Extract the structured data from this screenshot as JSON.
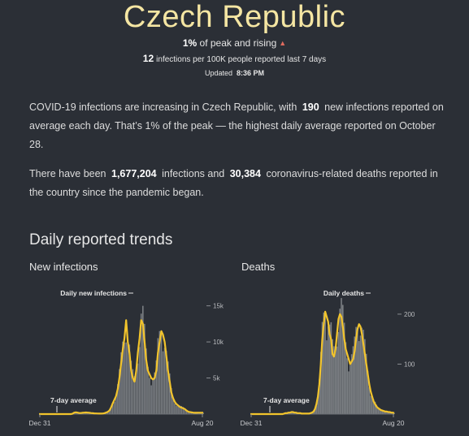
{
  "header": {
    "title": "Czech Republic",
    "peak_pct": "1%",
    "peak_text": "of peak and rising",
    "rising_icon": "up-triangle-icon",
    "per100k_value": "12",
    "per100k_text": "infections per 100K people reported last 7 days",
    "updated_label": "Updated",
    "updated_time": "8:36 PM"
  },
  "summary": {
    "p1_a": "COVID-19 infections are increasing in Czech Republic, with",
    "p1_value": "190",
    "p1_b": "new infections reported on average each day. That’s 1% of the peak — the highest daily average reported on October 28.",
    "p2_a": "There have been",
    "p2_infections": "1,677,204",
    "p2_b": "infections and",
    "p2_deaths": "30,384",
    "p2_c": "coronavirus-related deaths reported in the country since the pandemic began."
  },
  "trends": {
    "section_title": "Daily reported trends"
  },
  "colors": {
    "background": "#2b2f36",
    "title": "#f5e6a3",
    "average_line": "#f2c42c",
    "daily_bars": "#8a8d91",
    "rising_arrow": "#e06b5f"
  },
  "chart_data": [
    {
      "type": "area",
      "title": "New infections",
      "series_label": "Daily new infections",
      "average_label": "7-day average",
      "x_start_label": "Dec 31",
      "x_end_label": "Aug 20",
      "y_ticks": [
        "15k",
        "10k",
        "5k"
      ],
      "y_tick_values": [
        15000,
        10000,
        5000
      ],
      "ylim": [
        0,
        18000
      ],
      "seven_day_average": [
        0,
        0,
        0,
        0,
        0,
        0,
        0,
        0,
        0,
        0,
        0,
        0,
        0,
        0,
        0,
        0,
        0,
        0,
        0,
        0,
        50,
        200,
        250,
        200,
        150,
        150,
        180,
        200,
        220,
        200,
        180,
        150,
        120,
        100,
        90,
        80,
        70,
        70,
        80,
        120,
        200,
        300,
        500,
        900,
        1500,
        2000,
        2500,
        3500,
        5000,
        7000,
        9000,
        10500,
        13000,
        10000,
        8500,
        6000,
        5000,
        4500,
        6000,
        8500,
        10500,
        13000,
        12500,
        10000,
        7500,
        6000,
        5500,
        5000,
        4800,
        5000,
        6000,
        8500,
        10000,
        11500,
        11000,
        10000,
        8000,
        6000,
        4500,
        3000,
        2200,
        1700,
        1400,
        1200,
        1000,
        900,
        800,
        700,
        500,
        350,
        280,
        250,
        200,
        180,
        180,
        190,
        190,
        190,
        190
      ]
    },
    {
      "type": "area",
      "title": "Deaths",
      "series_label": "Daily deaths",
      "average_label": "7-day average",
      "x_start_label": "Dec 31",
      "x_end_label": "Aug 20",
      "y_ticks": [
        "200",
        "100"
      ],
      "y_tick_values": [
        200,
        100
      ],
      "ylim": [
        0,
        260
      ],
      "seven_day_average": [
        0,
        0,
        0,
        0,
        0,
        0,
        0,
        0,
        0,
        0,
        0,
        0,
        0,
        0,
        0,
        0,
        0,
        0,
        0,
        0,
        0,
        0,
        0,
        1,
        2,
        2,
        3,
        3,
        4,
        4,
        3,
        3,
        2,
        2,
        2,
        1,
        1,
        1,
        1,
        1,
        1,
        2,
        3,
        5,
        10,
        20,
        35,
        60,
        100,
        150,
        180,
        205,
        195,
        185,
        160,
        150,
        120,
        115,
        130,
        160,
        190,
        200,
        195,
        175,
        150,
        130,
        120,
        110,
        100,
        105,
        110,
        125,
        150,
        170,
        180,
        175,
        160,
        140,
        120,
        100,
        80,
        60,
        45,
        35,
        25,
        20,
        15,
        12,
        10,
        8,
        7,
        6,
        5,
        5,
        4,
        4,
        3,
        3,
        2
      ]
    }
  ]
}
